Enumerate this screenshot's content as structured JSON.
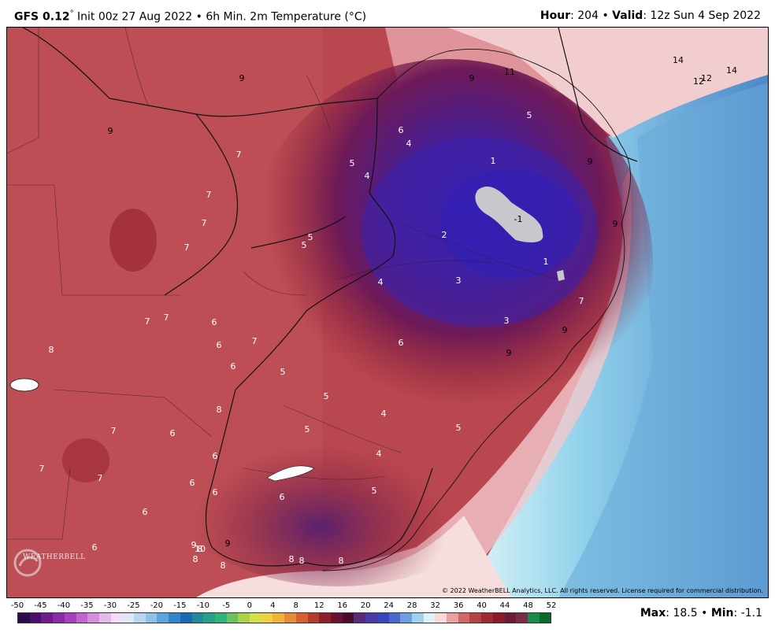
{
  "header": {
    "model": "GFS 0.12",
    "degree": "°",
    "init": " Init 00z 27 Aug 2022",
    "sep": " • ",
    "product": "6h Min. 2m Temperature (°C)",
    "hour_label": "Hour",
    "hour_value": ": 204",
    "valid_label": "Valid",
    "valid_value": ": 12z Sun 4 Sep 2022"
  },
  "copyright": "© 2022 WeatherBELL Analytics, LLC. All rights reserved. License required for commercial distribution.",
  "logo": "WEATHERBELL",
  "stats": {
    "max_label": "Max",
    "max_value": ": 18.5",
    "bullet": " • ",
    "min_label": "Min",
    "min_value": ": -1.1"
  },
  "legend": {
    "ticks": [
      "-50",
      "-45",
      "-40",
      "-35",
      "-30",
      "-25",
      "-20",
      "-15",
      "-10",
      "-5",
      "0",
      "4",
      "8",
      "12",
      "16",
      "20",
      "24",
      "28",
      "32",
      "36",
      "40",
      "44",
      "48",
      "52"
    ],
    "colors": [
      "#2a0a4a",
      "#4b0f6b",
      "#6e1a8e",
      "#8a2aa8",
      "#a83fc0",
      "#c264cf",
      "#d68fe0",
      "#e7b8ee",
      "#f2dcf6",
      "#e0e8f8",
      "#b8d6f2",
      "#8ec0ea",
      "#5da4de",
      "#2f86cc",
      "#1a6ab3",
      "#1f8a9a",
      "#25a08a",
      "#2fb47a",
      "#6cc25f",
      "#a9d24a",
      "#d6df46",
      "#efd040",
      "#f0b23b",
      "#e88a35",
      "#d85e2f",
      "#b63b2c",
      "#8e1f2a",
      "#6a1030",
      "#4a0a2e",
      "#5a2a7a",
      "#4a3aa8",
      "#3a44c0",
      "#4a66d0",
      "#6aa0e0",
      "#a0d0f0",
      "#e0f0f8",
      "#f8d8d8",
      "#e8a0a0",
      "#d06868",
      "#b84040",
      "#a02a30",
      "#8a1a2a",
      "#6a1a3a",
      "#7a2a4a",
      "#1a8a4a",
      "#0a6a2a"
    ]
  },
  "map_labels": [
    {
      "t": "9",
      "c": "#000"
    },
    {
      "t": "11",
      "c": "#000"
    },
    {
      "t": "14",
      "c": "#000"
    },
    {
      "t": "12",
      "c": "#000"
    },
    {
      "t": "12",
      "c": "#000"
    },
    {
      "t": "14",
      "c": "#000"
    },
    {
      "t": "9",
      "c": "#000"
    },
    {
      "t": "9",
      "c": "#000"
    },
    {
      "t": "5",
      "c": "#fff"
    },
    {
      "t": "6",
      "c": "#fff"
    },
    {
      "t": "4",
      "c": "#fff"
    },
    {
      "t": "9",
      "c": "#000"
    },
    {
      "t": "5",
      "c": "#fff"
    },
    {
      "t": "4",
      "c": "#fff"
    },
    {
      "t": "1",
      "c": "#fff"
    },
    {
      "t": "7",
      "c": "#fff"
    },
    {
      "t": "7",
      "c": "#fff"
    },
    {
      "t": "7",
      "c": "#fff"
    },
    {
      "t": "-1",
      "c": "#000"
    },
    {
      "t": "2",
      "c": "#fff"
    },
    {
      "t": "5",
      "c": "#fff"
    },
    {
      "t": "5",
      "c": "#fff"
    },
    {
      "t": "7",
      "c": "#fff"
    },
    {
      "t": "9",
      "c": "#000"
    },
    {
      "t": "1",
      "c": "#fff"
    },
    {
      "t": "4",
      "c": "#fff"
    },
    {
      "t": "3",
      "c": "#fff"
    },
    {
      "t": "7",
      "c": "#fff"
    },
    {
      "t": "7",
      "c": "#fff"
    },
    {
      "t": "7",
      "c": "#fff"
    },
    {
      "t": "3",
      "c": "#fff"
    },
    {
      "t": "6",
      "c": "#fff"
    },
    {
      "t": "6",
      "c": "#fff"
    },
    {
      "t": "7",
      "c": "#fff"
    },
    {
      "t": "9",
      "c": "#000"
    },
    {
      "t": "6",
      "c": "#fff"
    },
    {
      "t": "8",
      "c": "#fff"
    },
    {
      "t": "9",
      "c": "#000"
    },
    {
      "t": "6",
      "c": "#fff"
    },
    {
      "t": "5",
      "c": "#fff"
    },
    {
      "t": "5",
      "c": "#fff"
    },
    {
      "t": "4",
      "c": "#fff"
    },
    {
      "t": "8",
      "c": "#fff"
    },
    {
      "t": "7",
      "c": "#fff"
    },
    {
      "t": "6",
      "c": "#fff"
    },
    {
      "t": "5",
      "c": "#fff"
    },
    {
      "t": "5",
      "c": "#fff"
    },
    {
      "t": "6",
      "c": "#fff"
    },
    {
      "t": "4",
      "c": "#fff"
    },
    {
      "t": "7",
      "c": "#fff"
    },
    {
      "t": "7",
      "c": "#fff"
    },
    {
      "t": "6",
      "c": "#fff"
    },
    {
      "t": "5",
      "c": "#fff"
    },
    {
      "t": "6",
      "c": "#fff"
    },
    {
      "t": "6",
      "c": "#fff"
    },
    {
      "t": "6",
      "c": "#fff"
    },
    {
      "t": "6",
      "c": "#fff"
    },
    {
      "t": "9",
      "c": "#fff"
    },
    {
      "t": "8",
      "c": "#fff"
    },
    {
      "t": "9",
      "c": "#000"
    },
    {
      "t": "10",
      "c": "#fff"
    },
    {
      "t": "8",
      "c": "#fff"
    },
    {
      "t": "8",
      "c": "#fff"
    },
    {
      "t": "8",
      "c": "#fff"
    },
    {
      "t": "8",
      "c": "#fff"
    },
    {
      "t": "8",
      "c": "#fff"
    }
  ]
}
